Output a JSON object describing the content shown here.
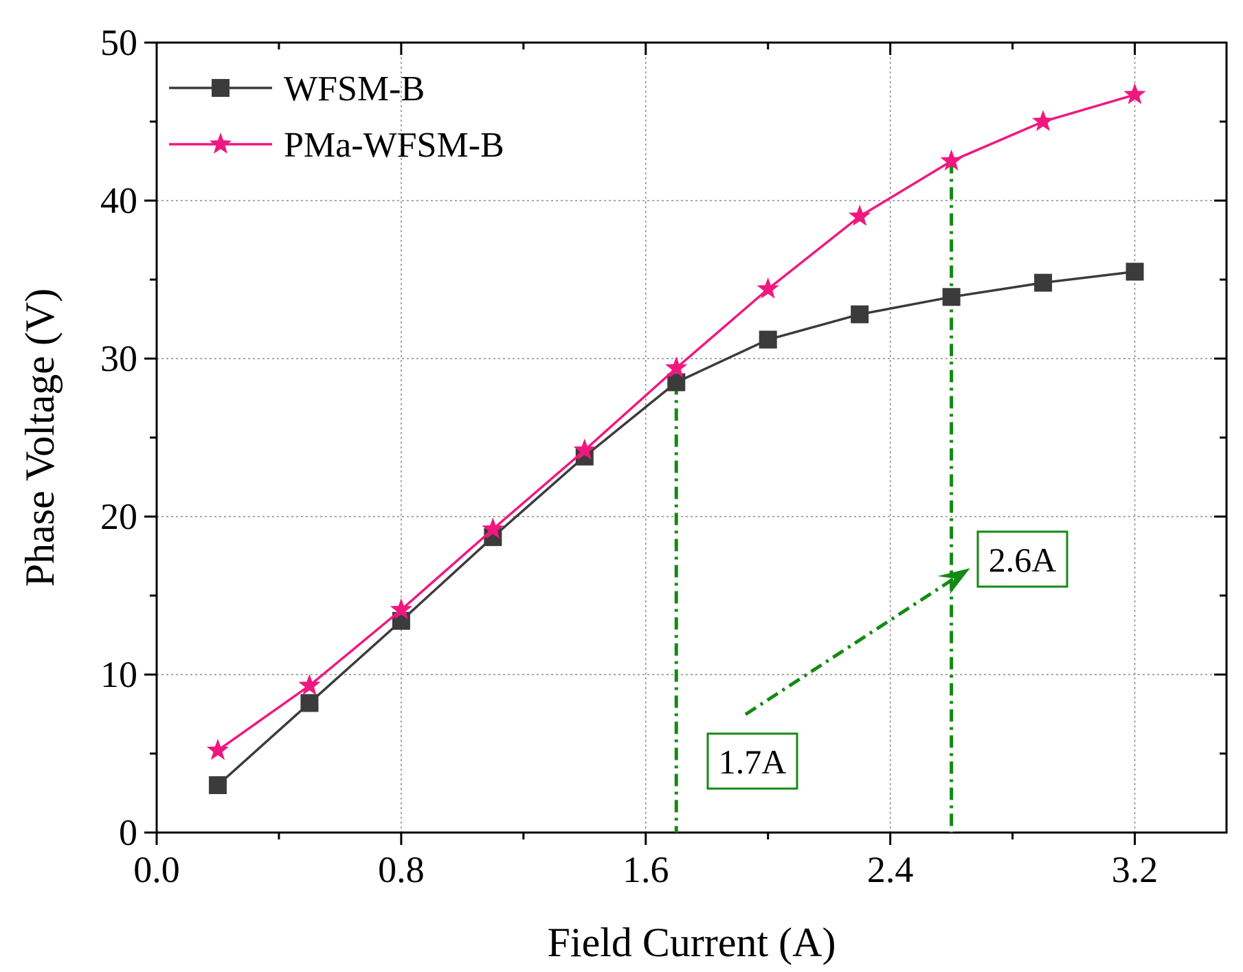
{
  "chart_data": {
    "type": "line",
    "title": "",
    "xlabel": "Field Current (A)",
    "ylabel": "Phase Voltage (V)",
    "xlim": [
      0.0,
      3.5
    ],
    "ylim": [
      0,
      50
    ],
    "x_ticks": [
      0.0,
      0.8,
      1.6,
      2.4,
      3.2
    ],
    "x_tick_labels": [
      "0.0",
      "0.8",
      "1.6",
      "2.4",
      "3.2"
    ],
    "y_ticks": [
      0,
      10,
      20,
      30,
      40,
      50
    ],
    "y_tick_labels": [
      "0",
      "10",
      "20",
      "30",
      "40",
      "50"
    ],
    "grid": true,
    "legend_position": "top-left",
    "series": [
      {
        "name": "WFSM-B",
        "color": "#3b3b3b",
        "marker": "square",
        "x": [
          0.2,
          0.5,
          0.8,
          1.1,
          1.4,
          1.7,
          2.0,
          2.3,
          2.6,
          2.9,
          3.2
        ],
        "values": [
          3.0,
          8.2,
          13.4,
          18.7,
          23.8,
          28.5,
          31.2,
          32.8,
          33.9,
          34.8,
          35.5
        ]
      },
      {
        "name": "PMa-WFSM-B",
        "color": "#f0187f",
        "marker": "star",
        "x": [
          0.2,
          0.5,
          0.8,
          1.1,
          1.4,
          1.7,
          2.0,
          2.3,
          2.6,
          2.9,
          3.2
        ],
        "values": [
          5.2,
          9.3,
          14.1,
          19.2,
          24.2,
          29.4,
          34.4,
          39.0,
          42.5,
          45.0,
          46.7
        ]
      }
    ],
    "annotations": [
      {
        "label": "1.7A",
        "x": 1.7,
        "y_top": 28.5,
        "color": "#138a13"
      },
      {
        "label": "2.6A",
        "x": 2.6,
        "y_top": 42.5,
        "color": "#138a13"
      }
    ]
  }
}
